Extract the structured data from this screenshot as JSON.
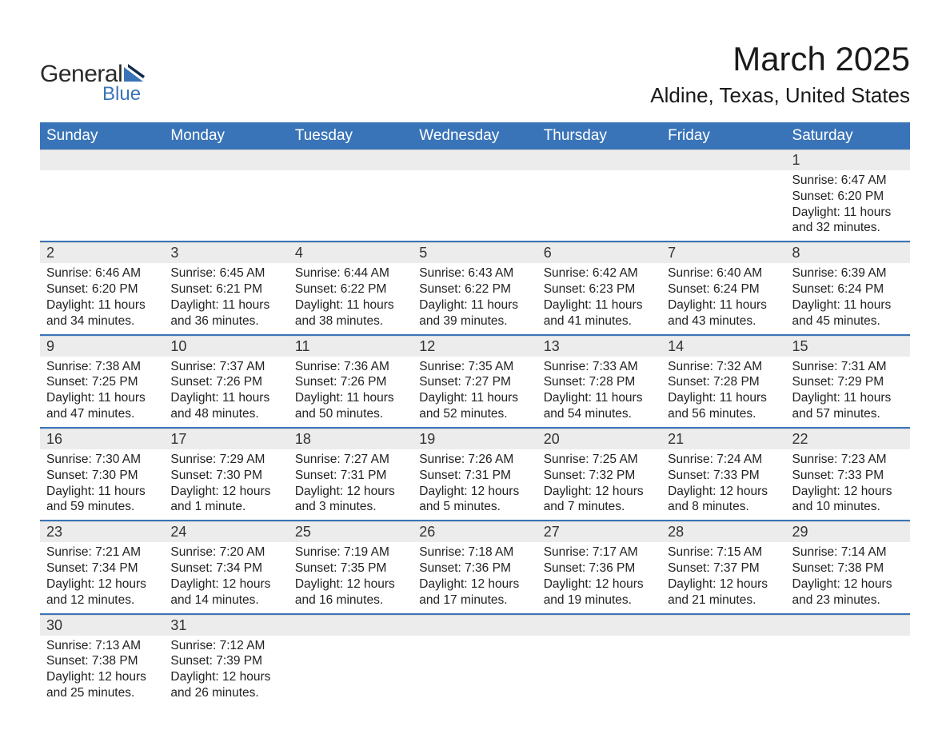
{
  "logo": {
    "text1": "General",
    "text2": "Blue"
  },
  "title": "March 2025",
  "location": "Aldine, Texas, United States",
  "colors": {
    "header_bg": "#3a74b8",
    "header_fg": "#ffffff",
    "daynum_bg": "#ececec",
    "row_border": "#3a74b8",
    "text": "#222222",
    "page_bg": "#ffffff"
  },
  "typography": {
    "month_title_fontsize": 42,
    "location_fontsize": 26,
    "weekday_fontsize": 19,
    "daynum_fontsize": 18,
    "cell_fontsize": 15.5
  },
  "weekdays": [
    "Sunday",
    "Monday",
    "Tuesday",
    "Wednesday",
    "Thursday",
    "Friday",
    "Saturday"
  ],
  "grid": {
    "start_weekday_index": 6,
    "rows": 6,
    "cols": 7
  },
  "days": [
    {
      "n": 1,
      "sunrise": "6:47 AM",
      "sunset": "6:20 PM",
      "dl_h": 11,
      "dl_m": 32
    },
    {
      "n": 2,
      "sunrise": "6:46 AM",
      "sunset": "6:20 PM",
      "dl_h": 11,
      "dl_m": 34
    },
    {
      "n": 3,
      "sunrise": "6:45 AM",
      "sunset": "6:21 PM",
      "dl_h": 11,
      "dl_m": 36
    },
    {
      "n": 4,
      "sunrise": "6:44 AM",
      "sunset": "6:22 PM",
      "dl_h": 11,
      "dl_m": 38
    },
    {
      "n": 5,
      "sunrise": "6:43 AM",
      "sunset": "6:22 PM",
      "dl_h": 11,
      "dl_m": 39
    },
    {
      "n": 6,
      "sunrise": "6:42 AM",
      "sunset": "6:23 PM",
      "dl_h": 11,
      "dl_m": 41
    },
    {
      "n": 7,
      "sunrise": "6:40 AM",
      "sunset": "6:24 PM",
      "dl_h": 11,
      "dl_m": 43
    },
    {
      "n": 8,
      "sunrise": "6:39 AM",
      "sunset": "6:24 PM",
      "dl_h": 11,
      "dl_m": 45
    },
    {
      "n": 9,
      "sunrise": "7:38 AM",
      "sunset": "7:25 PM",
      "dl_h": 11,
      "dl_m": 47
    },
    {
      "n": 10,
      "sunrise": "7:37 AM",
      "sunset": "7:26 PM",
      "dl_h": 11,
      "dl_m": 48
    },
    {
      "n": 11,
      "sunrise": "7:36 AM",
      "sunset": "7:26 PM",
      "dl_h": 11,
      "dl_m": 50
    },
    {
      "n": 12,
      "sunrise": "7:35 AM",
      "sunset": "7:27 PM",
      "dl_h": 11,
      "dl_m": 52
    },
    {
      "n": 13,
      "sunrise": "7:33 AM",
      "sunset": "7:28 PM",
      "dl_h": 11,
      "dl_m": 54
    },
    {
      "n": 14,
      "sunrise": "7:32 AM",
      "sunset": "7:28 PM",
      "dl_h": 11,
      "dl_m": 56
    },
    {
      "n": 15,
      "sunrise": "7:31 AM",
      "sunset": "7:29 PM",
      "dl_h": 11,
      "dl_m": 57
    },
    {
      "n": 16,
      "sunrise": "7:30 AM",
      "sunset": "7:30 PM",
      "dl_h": 11,
      "dl_m": 59
    },
    {
      "n": 17,
      "sunrise": "7:29 AM",
      "sunset": "7:30 PM",
      "dl_h": 12,
      "dl_m": 1
    },
    {
      "n": 18,
      "sunrise": "7:27 AM",
      "sunset": "7:31 PM",
      "dl_h": 12,
      "dl_m": 3
    },
    {
      "n": 19,
      "sunrise": "7:26 AM",
      "sunset": "7:31 PM",
      "dl_h": 12,
      "dl_m": 5
    },
    {
      "n": 20,
      "sunrise": "7:25 AM",
      "sunset": "7:32 PM",
      "dl_h": 12,
      "dl_m": 7
    },
    {
      "n": 21,
      "sunrise": "7:24 AM",
      "sunset": "7:33 PM",
      "dl_h": 12,
      "dl_m": 8
    },
    {
      "n": 22,
      "sunrise": "7:23 AM",
      "sunset": "7:33 PM",
      "dl_h": 12,
      "dl_m": 10
    },
    {
      "n": 23,
      "sunrise": "7:21 AM",
      "sunset": "7:34 PM",
      "dl_h": 12,
      "dl_m": 12
    },
    {
      "n": 24,
      "sunrise": "7:20 AM",
      "sunset": "7:34 PM",
      "dl_h": 12,
      "dl_m": 14
    },
    {
      "n": 25,
      "sunrise": "7:19 AM",
      "sunset": "7:35 PM",
      "dl_h": 12,
      "dl_m": 16
    },
    {
      "n": 26,
      "sunrise": "7:18 AM",
      "sunset": "7:36 PM",
      "dl_h": 12,
      "dl_m": 17
    },
    {
      "n": 27,
      "sunrise": "7:17 AM",
      "sunset": "7:36 PM",
      "dl_h": 12,
      "dl_m": 19
    },
    {
      "n": 28,
      "sunrise": "7:15 AM",
      "sunset": "7:37 PM",
      "dl_h": 12,
      "dl_m": 21
    },
    {
      "n": 29,
      "sunrise": "7:14 AM",
      "sunset": "7:38 PM",
      "dl_h": 12,
      "dl_m": 23
    },
    {
      "n": 30,
      "sunrise": "7:13 AM",
      "sunset": "7:38 PM",
      "dl_h": 12,
      "dl_m": 25
    },
    {
      "n": 31,
      "sunrise": "7:12 AM",
      "sunset": "7:39 PM",
      "dl_h": 12,
      "dl_m": 26
    }
  ],
  "labels": {
    "sunrise": "Sunrise:",
    "sunset": "Sunset:",
    "daylight": "Daylight:",
    "hours_word": "hours",
    "and_word": "and",
    "minutes_word_singular": "minute.",
    "minutes_word_plural": "minutes."
  }
}
